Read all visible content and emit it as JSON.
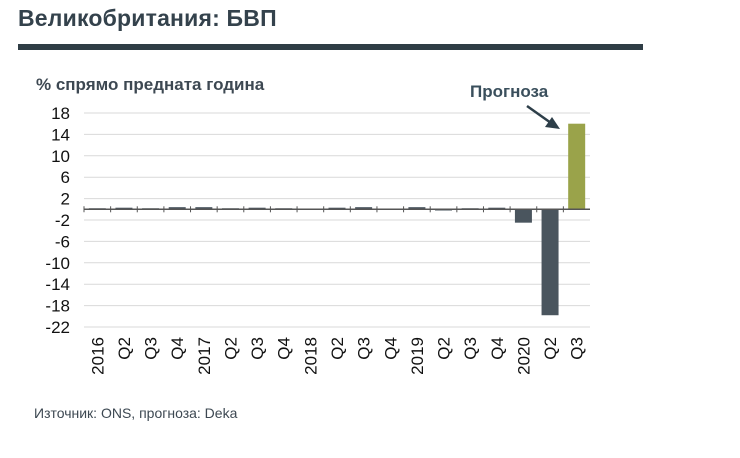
{
  "header": {
    "title": "Великобритания: БВП"
  },
  "source": "Източник: ONS, прогноза: Deka",
  "colors": {
    "actual": "#4a555e",
    "forecast": "#9aa34a",
    "rule": "#2f3d45"
  },
  "chart_data": {
    "type": "bar",
    "title": "Великобритания: БВП",
    "ylabel": "% спрямо предната година",
    "xlabel": "",
    "ylim": [
      -22,
      18
    ],
    "yticks": [
      18,
      14,
      10,
      6,
      2,
      -2,
      -6,
      -10,
      -14,
      -18,
      -22
    ],
    "grid": true,
    "categories": [
      "2016",
      "Q2",
      "Q3",
      "Q4",
      "2017",
      "Q2",
      "Q3",
      "Q4",
      "2018",
      "Q2",
      "Q3",
      "Q4",
      "2019",
      "Q2",
      "Q3",
      "Q4",
      "2020",
      "Q2",
      "Q3"
    ],
    "values": [
      0.2,
      0.3,
      0.2,
      0.4,
      0.4,
      0.2,
      0.3,
      0.2,
      0.1,
      0.3,
      0.4,
      0.1,
      0.4,
      0.0,
      0.2,
      0.3,
      -2.5,
      -19.8,
      16.0
    ],
    "forecast_categories": [
      "Q3"
    ],
    "forecast_index": 18,
    "annotation": "Прогноза"
  }
}
